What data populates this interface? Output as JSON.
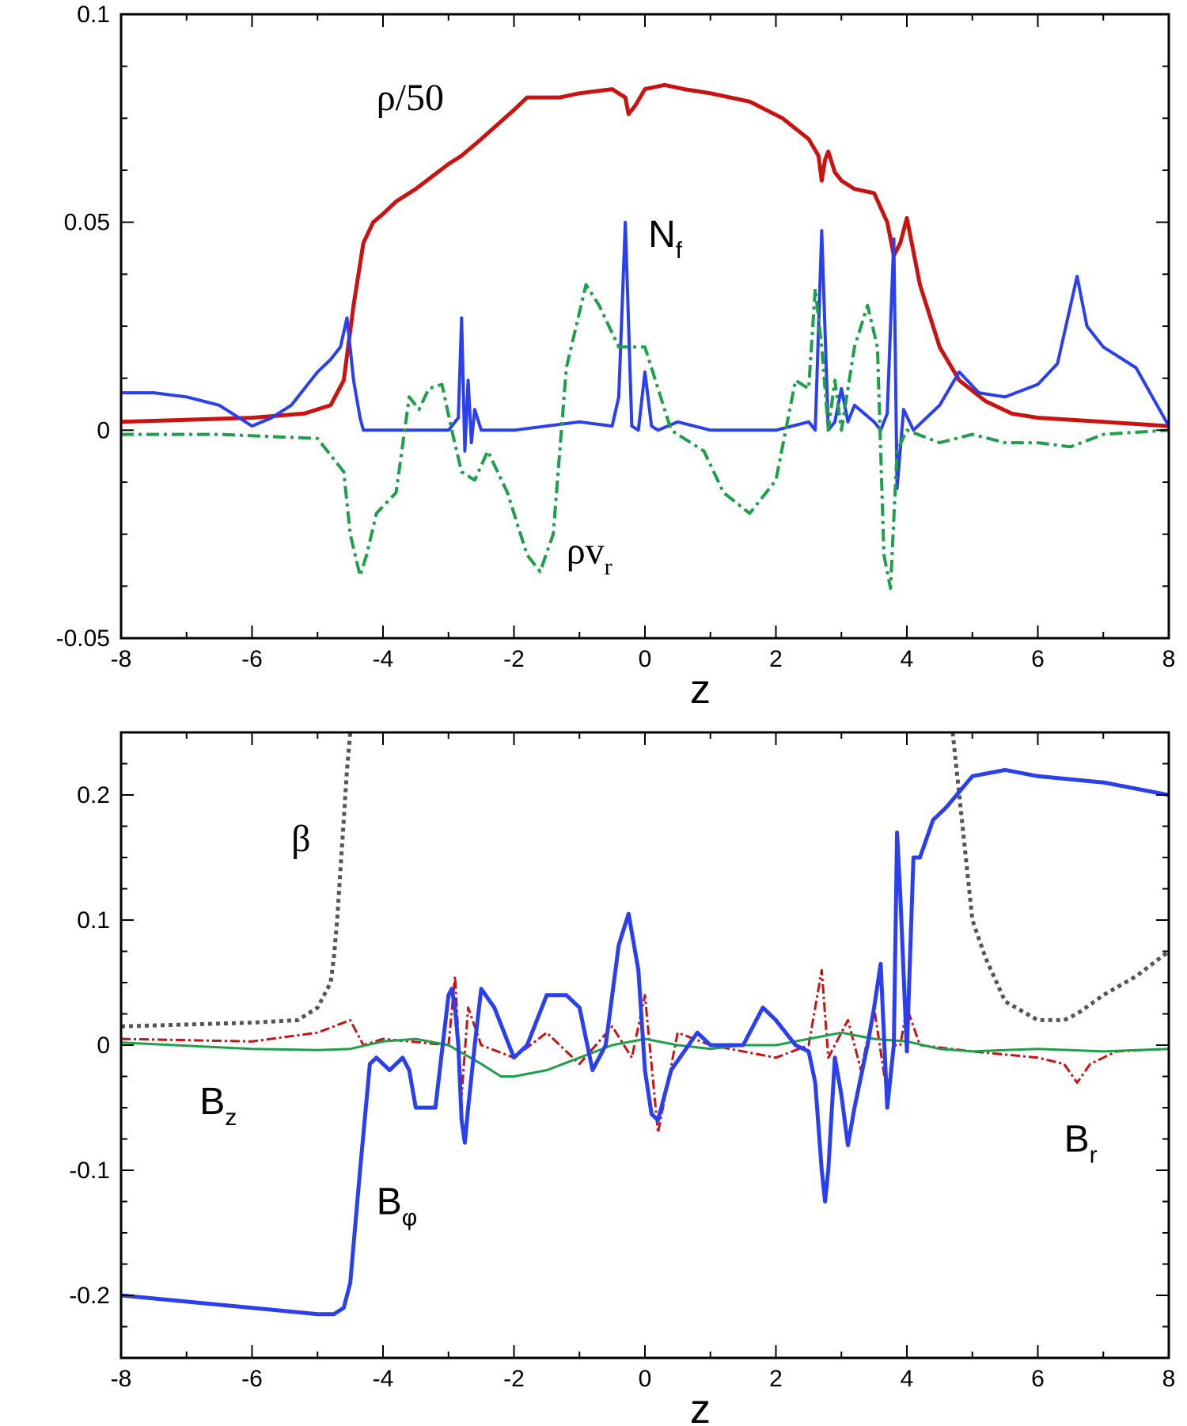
{
  "chart_data": [
    {
      "type": "line",
      "xlabel": "z",
      "ylabel": "",
      "xlim": [
        -8,
        8
      ],
      "ylim": [
        -0.05,
        0.1
      ],
      "x_ticks": [
        -8,
        -6,
        -4,
        -2,
        0,
        2,
        4,
        6,
        8
      ],
      "y_ticks": [
        -0.05,
        0,
        0.05,
        0.1
      ],
      "x_tick_labels": [
        "-8",
        "-6",
        "-4",
        "-2",
        "0",
        "2",
        "4",
        "6",
        "8"
      ],
      "y_tick_labels": [
        "-0.05",
        "0",
        "0.05",
        "0.1"
      ],
      "annotations": [
        {
          "main": "ρ/50",
          "sub": "",
          "x": -4.1,
          "y": 0.077,
          "style": "serif"
        },
        {
          "main": "N",
          "sub": "f",
          "x": 0.05,
          "y": 0.044,
          "style": "sans"
        },
        {
          "main": "ρv",
          "sub": "r",
          "x": -1.2,
          "y": -0.032,
          "style": "serif"
        }
      ],
      "series": [
        {
          "name": "ρ/50",
          "color": "#cc1111",
          "width": 5,
          "dash": "",
          "x": [
            -8,
            -7,
            -6,
            -5.2,
            -4.8,
            -4.6,
            -4.45,
            -4.3,
            -4.15,
            -4.0,
            -3.8,
            -3.5,
            -3.0,
            -2.8,
            -2.5,
            -2.0,
            -1.8,
            -1.3,
            -1.0,
            -0.5,
            -0.3,
            -0.25,
            -0.15,
            0,
            0.3,
            0.6,
            1.0,
            1.6,
            2.1,
            2.5,
            2.65,
            2.7,
            2.75,
            2.8,
            2.9,
            3.0,
            3.2,
            3.5,
            3.7,
            3.8,
            3.9,
            4.0,
            4.2,
            4.5,
            4.8,
            5.2,
            5.6,
            6.0,
            7.0,
            8.0
          ],
          "y": [
            0.002,
            0.0025,
            0.003,
            0.004,
            0.006,
            0.012,
            0.03,
            0.045,
            0.05,
            0.052,
            0.055,
            0.058,
            0.064,
            0.066,
            0.07,
            0.077,
            0.08,
            0.08,
            0.081,
            0.082,
            0.08,
            0.076,
            0.078,
            0.082,
            0.083,
            0.082,
            0.081,
            0.079,
            0.075,
            0.07,
            0.066,
            0.06,
            0.065,
            0.067,
            0.062,
            0.06,
            0.058,
            0.057,
            0.05,
            0.042,
            0.045,
            0.051,
            0.035,
            0.02,
            0.012,
            0.007,
            0.004,
            0.003,
            0.002,
            0.001
          ]
        },
        {
          "name": "N_f",
          "color": "#2a3ff0",
          "width": 4,
          "dash": "",
          "x": [
            -8,
            -7.5,
            -7,
            -6.5,
            -6.0,
            -5.7,
            -5.4,
            -5.2,
            -5.0,
            -4.8,
            -4.65,
            -4.55,
            -4.45,
            -4.35,
            -4.3,
            -4.0,
            -3.5,
            -3.0,
            -2.85,
            -2.8,
            -2.75,
            -2.7,
            -2.65,
            -2.6,
            -2.5,
            -2.0,
            -1.0,
            -0.5,
            -0.4,
            -0.3,
            -0.2,
            -0.1,
            0,
            0.1,
            0.2,
            0.5,
            1.0,
            2.0,
            2.5,
            2.6,
            2.7,
            2.8,
            2.9,
            3.0,
            3.1,
            3.2,
            3.5,
            3.6,
            3.7,
            3.8,
            3.85,
            3.95,
            4.1,
            4.3,
            4.5,
            4.8,
            5.1,
            5.5,
            6.0,
            6.3,
            6.5,
            6.6,
            6.75,
            7.0,
            7.5,
            8.0
          ],
          "y": [
            0.009,
            0.009,
            0.008,
            0.006,
            0.001,
            0.003,
            0.006,
            0.01,
            0.014,
            0.017,
            0.02,
            0.027,
            0.012,
            0.003,
            0.0,
            0.0,
            0.0,
            0.0,
            0.003,
            0.027,
            -0.005,
            0.012,
            -0.003,
            0.005,
            0.0,
            0.0,
            0.002,
            0.001,
            0.008,
            0.05,
            0.001,
            0.0,
            0.014,
            0.001,
            0.0,
            0.002,
            0.0,
            0.0,
            0.002,
            0.0,
            0.048,
            0.0,
            0.002,
            0.01,
            0.002,
            0.006,
            0.002,
            0.0,
            0.004,
            0.046,
            -0.014,
            0.005,
            0.0,
            0.003,
            0.006,
            0.014,
            0.009,
            0.008,
            0.011,
            0.016,
            0.03,
            0.037,
            0.025,
            0.02,
            0.015,
            0.001
          ]
        },
        {
          "name": "ρv_r",
          "color": "#1ca04a",
          "width": 4,
          "dash": "16,6,4,6",
          "x": [
            -8,
            -6.5,
            -5.0,
            -4.6,
            -4.5,
            -4.35,
            -4.25,
            -4.1,
            -3.8,
            -3.6,
            -3.45,
            -3.3,
            -3.1,
            -2.95,
            -2.8,
            -2.6,
            -2.4,
            -2.1,
            -1.8,
            -1.6,
            -1.4,
            -1.2,
            -0.9,
            -0.7,
            -0.4,
            0,
            0.4,
            0.9,
            1.2,
            1.6,
            2.0,
            2.3,
            2.5,
            2.6,
            2.7,
            2.8,
            2.9,
            3.0,
            3.2,
            3.4,
            3.55,
            3.65,
            3.75,
            3.85,
            4.0,
            4.5,
            5.0,
            5.5,
            6.0,
            6.5,
            7.0,
            8.0
          ],
          "y": [
            -0.001,
            -0.001,
            -0.002,
            -0.01,
            -0.025,
            -0.035,
            -0.03,
            -0.02,
            -0.015,
            0.008,
            0.005,
            0.01,
            0.011,
            0.0,
            -0.01,
            -0.012,
            -0.005,
            -0.015,
            -0.03,
            -0.034,
            -0.025,
            0.015,
            0.035,
            0.03,
            0.02,
            0.02,
            0.0,
            -0.005,
            -0.015,
            -0.02,
            -0.012,
            0.012,
            0.01,
            0.034,
            0.02,
            0.0,
            0.012,
            0.0,
            0.02,
            0.03,
            0.02,
            -0.03,
            -0.038,
            -0.005,
            0.0,
            -0.003,
            -0.001,
            -0.003,
            -0.003,
            -0.004,
            -0.001,
            0.0
          ]
        }
      ]
    },
    {
      "type": "line",
      "xlabel": "z",
      "ylabel": "",
      "xlim": [
        -8,
        8
      ],
      "ylim": [
        -0.25,
        0.25
      ],
      "x_ticks": [
        -8,
        -6,
        -4,
        -2,
        0,
        2,
        4,
        6,
        8
      ],
      "y_ticks": [
        -0.2,
        -0.1,
        0,
        0.1,
        0.2
      ],
      "x_tick_labels": [
        "-8",
        "-6",
        "-4",
        "-2",
        "0",
        "2",
        "4",
        "6",
        "8"
      ],
      "y_tick_labels": [
        "-0.2",
        "-0.1",
        "0",
        "0.1",
        "0.2"
      ],
      "annotations": [
        {
          "main": "β",
          "sub": "",
          "x": -5.4,
          "y": 0.155,
          "style": "serif"
        },
        {
          "main": "B",
          "sub": "z",
          "x": -6.8,
          "y": -0.055,
          "style": "sans"
        },
        {
          "main": "B",
          "sub": "r",
          "x": 6.4,
          "y": -0.085,
          "style": "sans"
        },
        {
          "main": "B",
          "sub": "φ",
          "x": -4.1,
          "y": -0.135,
          "style": "sans"
        }
      ],
      "series": [
        {
          "name": "β",
          "color": "#555555",
          "width": 5,
          "dash": "5,5",
          "x": [
            -8,
            -6,
            -5.3,
            -5.0,
            -4.8,
            -4.75,
            -4.7,
            -4.65,
            -4.6,
            -4.55,
            -4.5
          ],
          "y": [
            0.015,
            0.018,
            0.02,
            0.03,
            0.05,
            0.07,
            0.1,
            0.14,
            0.18,
            0.22,
            0.25
          ]
        },
        {
          "name": "β",
          "color": "#555555",
          "width": 5,
          "dash": "5,5",
          "x": [
            4.7,
            4.8,
            4.9,
            5.0,
            5.2,
            5.5,
            6.0,
            6.4,
            6.6,
            7.0,
            7.5,
            8.0
          ],
          "y": [
            0.25,
            0.2,
            0.15,
            0.1,
            0.07,
            0.035,
            0.02,
            0.02,
            0.025,
            0.04,
            0.055,
            0.075
          ]
        },
        {
          "name": "B_r",
          "color": "#cc1111",
          "width": 3,
          "dash": "12,4,3,4",
          "x": [
            -8,
            -6,
            -5.0,
            -4.5,
            -4.3,
            -4.0,
            -3.0,
            -2.9,
            -2.8,
            -2.7,
            -2.5,
            -2.0,
            -1.5,
            -1.0,
            -0.5,
            -0.2,
            0,
            0.2,
            0.5,
            1.0,
            2.0,
            2.5,
            2.7,
            2.8,
            2.9,
            3.1,
            3.3,
            3.5,
            3.7,
            3.8,
            3.9,
            4.0,
            4.2,
            5.0,
            6.0,
            6.4,
            6.6,
            6.8,
            7.2,
            8.0
          ],
          "y": [
            0.005,
            0.003,
            0.01,
            0.02,
            0.0,
            0.005,
            0.0,
            0.055,
            -0.04,
            0.03,
            0.0,
            -0.01,
            0.01,
            -0.015,
            0.015,
            -0.01,
            0.04,
            -0.07,
            0.01,
            0.0,
            -0.01,
            0.0,
            0.06,
            -0.01,
            0.0,
            0.02,
            -0.02,
            0.03,
            -0.04,
            0.0,
            0.0,
            0.03,
            0.0,
            -0.005,
            -0.01,
            -0.015,
            -0.03,
            -0.015,
            -0.005,
            -0.003
          ]
        },
        {
          "name": "B_z",
          "color": "#1ca04a",
          "width": 3,
          "dash": "",
          "x": [
            -8,
            -6,
            -5.0,
            -4.5,
            -4.0,
            -3.5,
            -3.0,
            -2.5,
            -2.2,
            -2.0,
            -1.5,
            -1.0,
            -0.5,
            0,
            0.5,
            1.0,
            1.5,
            2.0,
            2.5,
            3.0,
            3.5,
            4.0,
            4.5,
            5.0,
            6.0,
            7.0,
            8.0
          ],
          "y": [
            0.002,
            -0.003,
            -0.004,
            -0.003,
            0.003,
            0.005,
            0.0,
            -0.015,
            -0.025,
            -0.025,
            -0.02,
            -0.01,
            0.0,
            0.005,
            0.0,
            -0.003,
            0.0,
            0.0,
            0.005,
            0.01,
            0.005,
            0.003,
            -0.003,
            -0.005,
            -0.003,
            -0.005,
            -0.003
          ]
        },
        {
          "name": "B_φ",
          "color": "#2a3ff0",
          "width": 5,
          "dash": "",
          "x": [
            -8,
            -7,
            -6,
            -5.0,
            -4.75,
            -4.6,
            -4.5,
            -4.35,
            -4.2,
            -4.1,
            -3.9,
            -3.7,
            -3.6,
            -3.5,
            -3.2,
            -3.0,
            -2.95,
            -2.9,
            -2.85,
            -2.8,
            -2.75,
            -2.7,
            -2.6,
            -2.5,
            -2.3,
            -2.0,
            -1.8,
            -1.5,
            -1.2,
            -1.0,
            -0.8,
            -0.6,
            -0.4,
            -0.25,
            -0.1,
            0,
            0.1,
            0.2,
            0.4,
            0.8,
            1.0,
            1.5,
            1.8,
            2.0,
            2.3,
            2.5,
            2.6,
            2.7,
            2.75,
            2.8,
            2.9,
            3.0,
            3.1,
            3.2,
            3.4,
            3.5,
            3.6,
            3.7,
            3.8,
            3.85,
            3.9,
            4.0,
            4.1,
            4.2,
            4.4,
            4.6,
            5.0,
            5.5,
            6.0,
            7.0,
            8.0
          ],
          "y": [
            -0.2,
            -0.205,
            -0.21,
            -0.215,
            -0.215,
            -0.21,
            -0.19,
            -0.1,
            -0.015,
            -0.01,
            -0.02,
            -0.01,
            -0.02,
            -0.05,
            -0.05,
            0.04,
            0.045,
            0.03,
            0.0,
            -0.06,
            -0.078,
            -0.05,
            0.0,
            0.045,
            0.03,
            -0.01,
            0.0,
            0.04,
            0.04,
            0.03,
            -0.02,
            0.0,
            0.08,
            0.105,
            0.06,
            -0.02,
            -0.055,
            -0.06,
            -0.02,
            0.01,
            0.0,
            0.0,
            0.03,
            0.02,
            0.0,
            -0.005,
            -0.03,
            -0.1,
            -0.125,
            -0.1,
            -0.01,
            -0.04,
            -0.08,
            -0.05,
            0.0,
            0.03,
            0.065,
            -0.05,
            0.0,
            0.17,
            0.12,
            -0.005,
            0.15,
            0.15,
            0.18,
            0.19,
            0.215,
            0.22,
            0.215,
            0.21,
            0.2
          ]
        }
      ]
    }
  ]
}
